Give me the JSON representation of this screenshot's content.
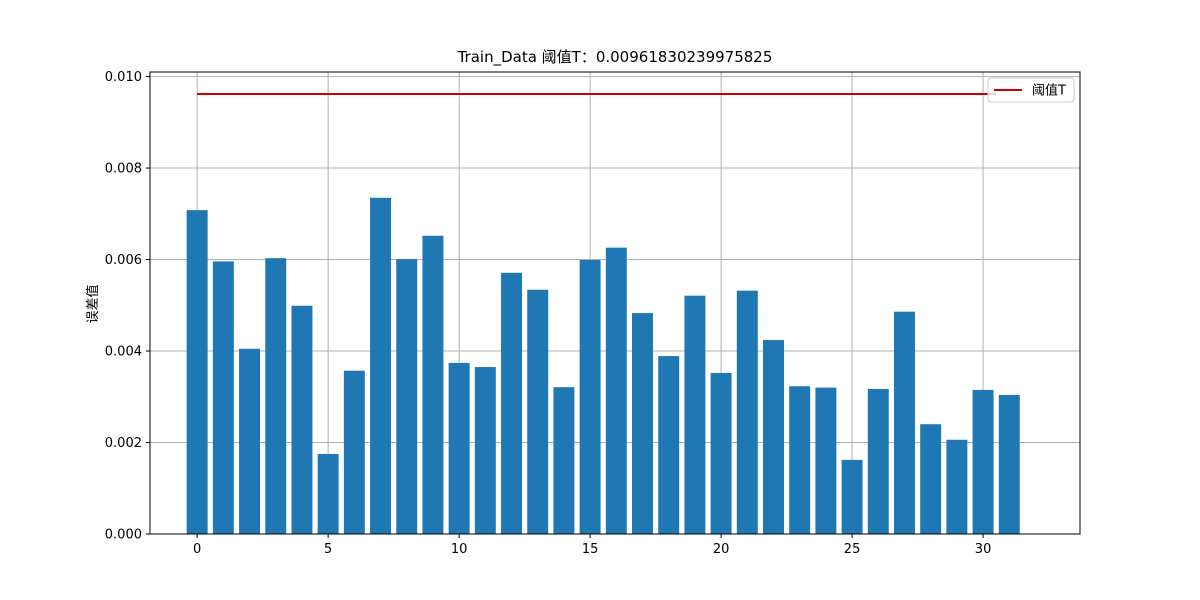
{
  "chart_data": {
    "type": "bar",
    "title": "Train_Data  阈值T：0.00961830239975825",
    "xlabel": "",
    "ylabel": "误差值",
    "x": [
      0,
      1,
      2,
      3,
      4,
      5,
      6,
      7,
      8,
      9,
      10,
      11,
      12,
      13,
      14,
      15,
      16,
      17,
      18,
      19,
      20,
      21,
      22,
      23,
      24,
      25,
      26,
      27,
      28,
      29,
      30,
      31
    ],
    "values": [
      0.00708,
      0.00596,
      0.00405,
      0.00603,
      0.00499,
      0.00175,
      0.00357,
      0.00735,
      0.00601,
      0.00652,
      0.00374,
      0.00365,
      0.00571,
      0.00534,
      0.00321,
      0.00599,
      0.00626,
      0.00483,
      0.00389,
      0.00521,
      0.00352,
      0.00532,
      0.00424,
      0.00323,
      0.0032,
      0.00162,
      0.00317,
      0.00486,
      0.0024,
      0.00206,
      0.00315,
      0.00304
    ],
    "bar_color": "#1f77b4",
    "threshold": {
      "name": "阈值T",
      "value": 0.00961830239975825,
      "color": "#cc0000",
      "x_range": [
        0,
        30.5
      ]
    },
    "xlim": [
      -1.8,
      33.7
    ],
    "ylim": [
      0,
      0.0101
    ],
    "xticks": [
      0,
      5,
      10,
      15,
      20,
      25,
      30
    ],
    "yticks": [
      0.0,
      0.002,
      0.004,
      0.006,
      0.008,
      0.01
    ],
    "ytick_labels": [
      "0.000",
      "0.002",
      "0.004",
      "0.006",
      "0.008",
      "0.010"
    ],
    "grid": true,
    "legend_position": "top-right"
  }
}
